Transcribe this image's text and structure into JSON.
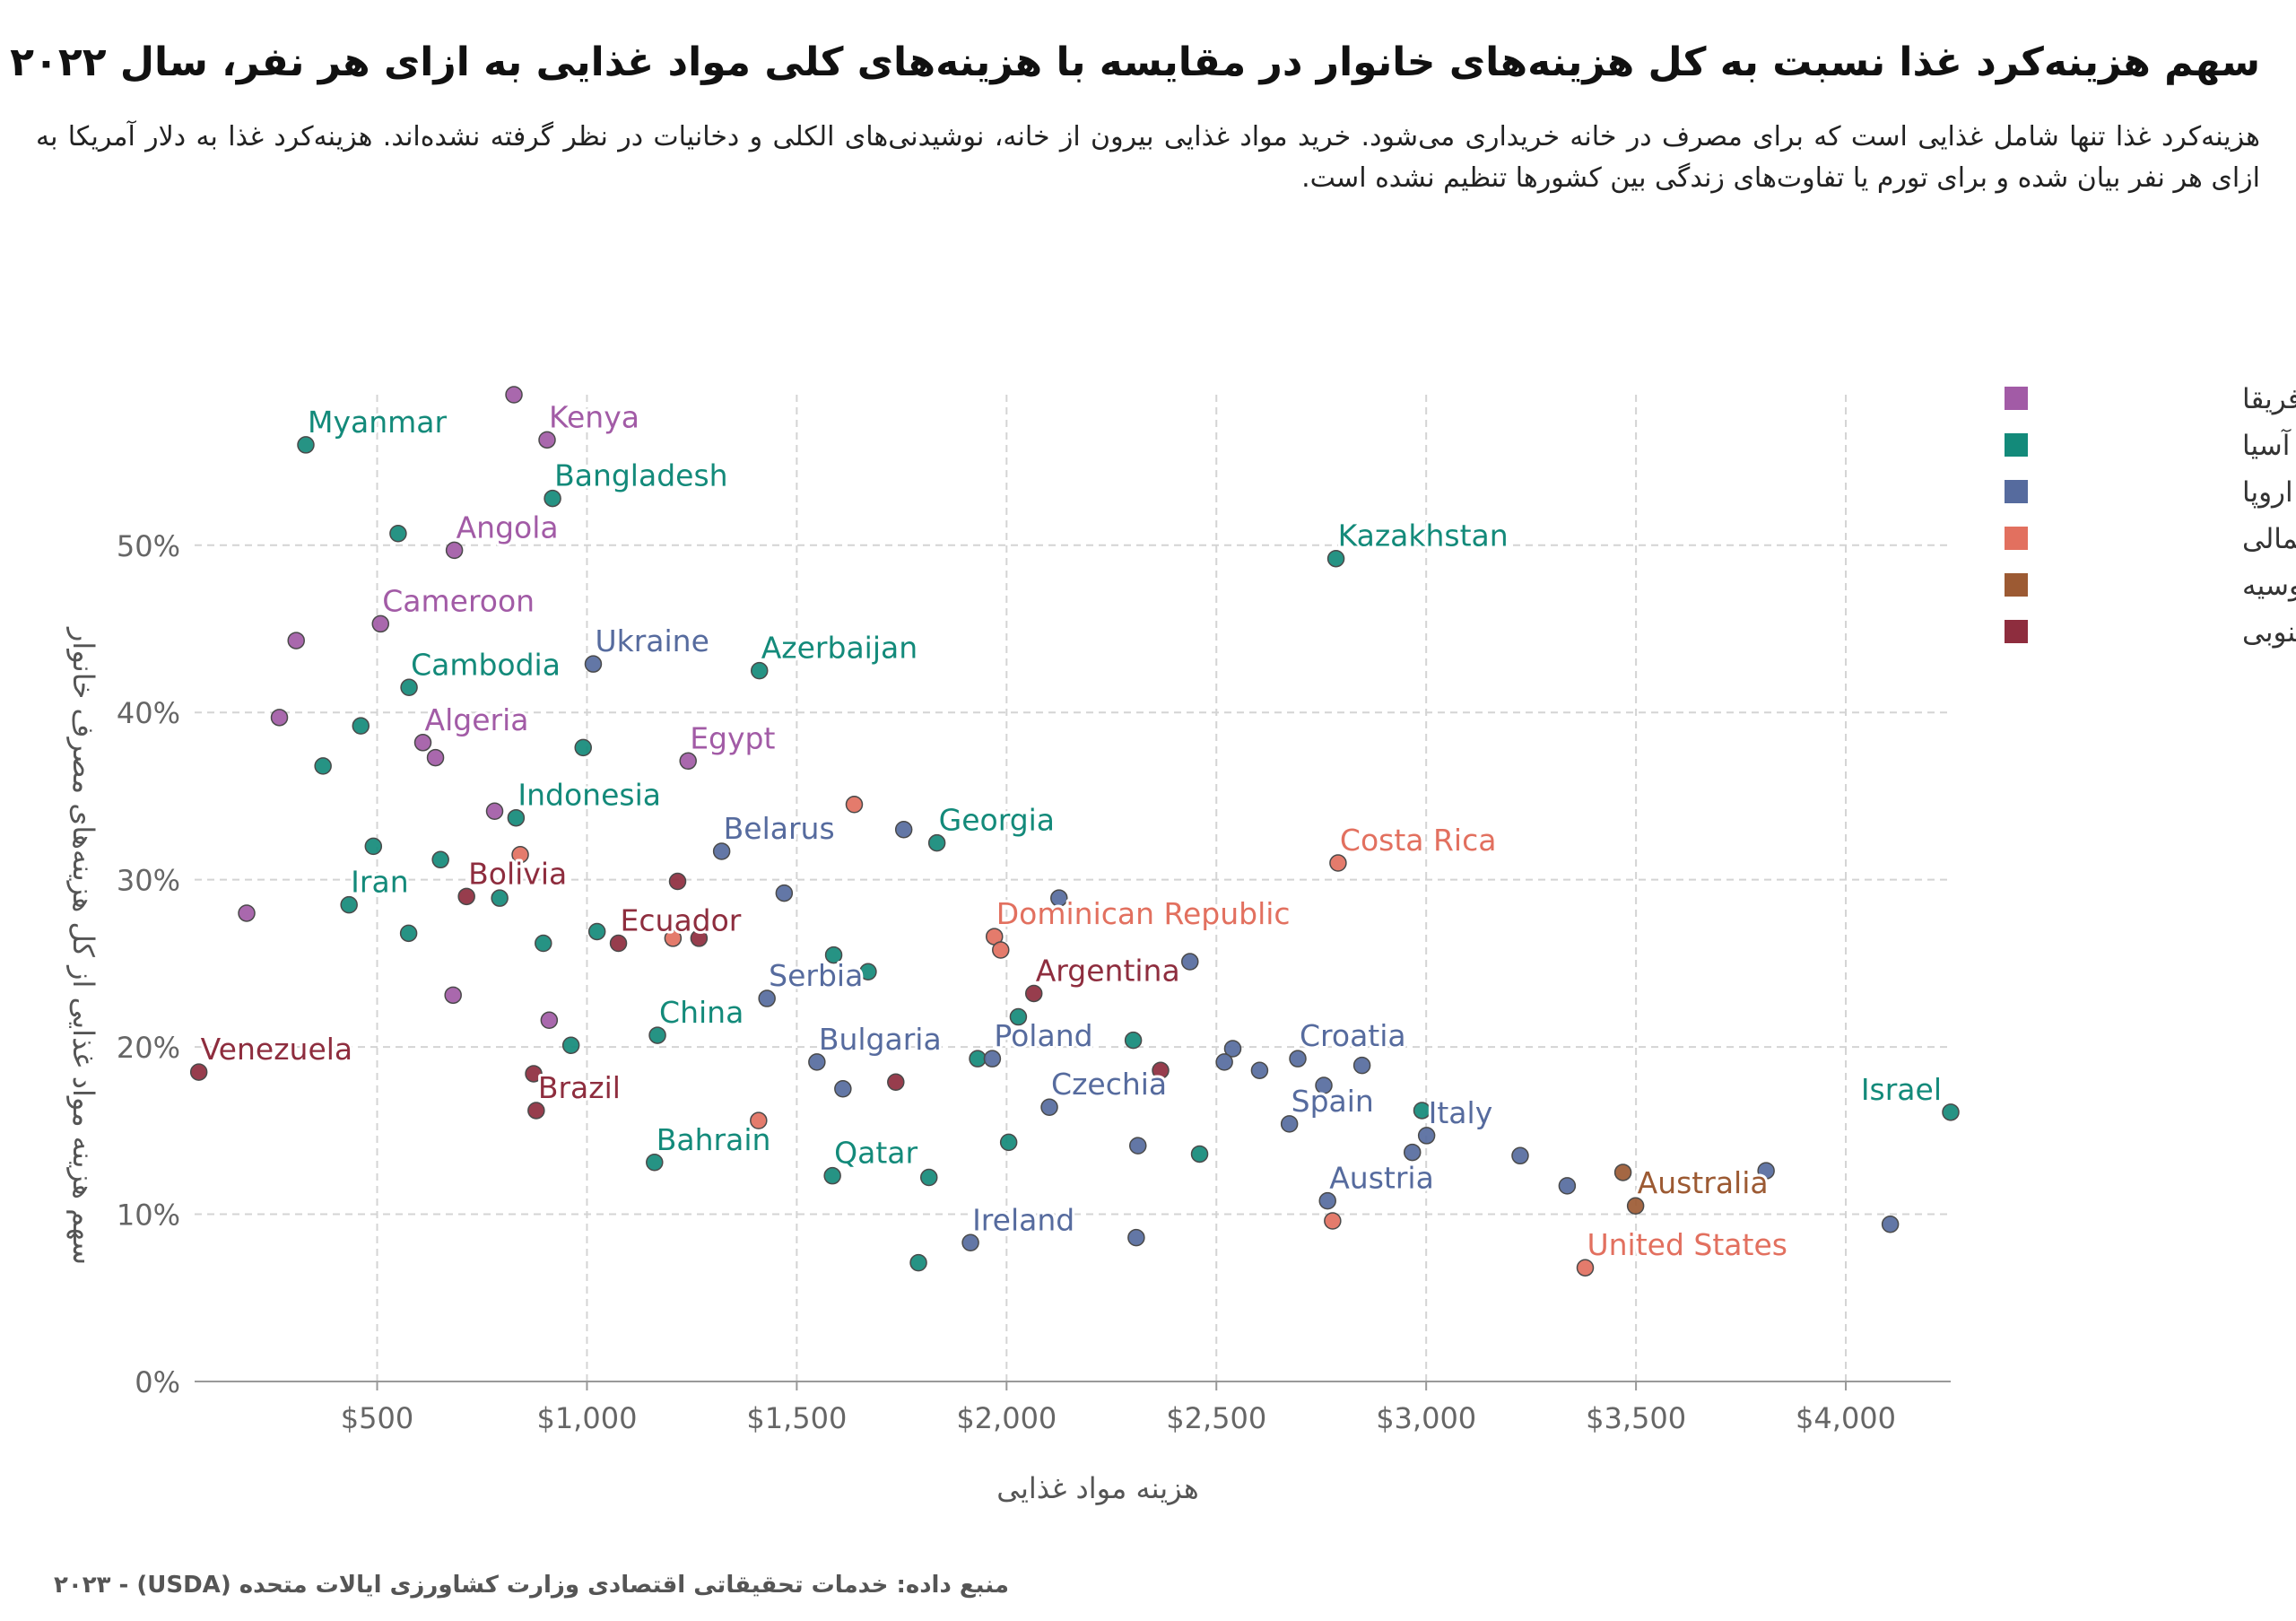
{
  "title": "سهم هزینه‌کرد غذا نسبت به کل هزینه‌های خانوار در مقایسه با هزینه‌های کلی مواد غذایی به ازای هر نفر، سال ۲۰۲۲",
  "subtitle": "هزینه‌کرد غذا تنها شامل غذایی است که برای مصرف در خانه خریداری می‌شود. خرید مواد غذایی بیرون از خانه، نوشیدنی‌های الکلی و دخانیات در نظر گرفته نشده‌اند. هزینه‌کرد غذا به دلار آمریکا به ازای هر نفر بیان شده و برای تورم یا تفاوت‌های زندگی بین کشورها تنظیم نشده است.",
  "source": "منبع داده: خدمات تحقیقاتی اقتصادی وزارت کشاورزی ایالات متحده (USDA) - ۲۰۲۳",
  "chart_data": {
    "type": "scatter",
    "xlabel": "هزینه مواد غذایی",
    "ylabel": "سهم هزینه مواد غذایی از کل هزینه‌های مصرف خانوار",
    "xlim": [
      65,
      4250
    ],
    "ylim": [
      0,
      59
    ],
    "xticks": [
      500,
      1000,
      1500,
      2000,
      2500,
      3000,
      3500,
      4000
    ],
    "xtick_labels": [
      "$500",
      "$1,000",
      "$1,500",
      "$2,000",
      "$2,500",
      "$3,000",
      "$3,500",
      "$4,000"
    ],
    "yticks": [
      0,
      10,
      20,
      30,
      40,
      50
    ],
    "ytick_labels": [
      "0%",
      "10%",
      "20%",
      "30%",
      "40%",
      "50%"
    ],
    "grid": true,
    "legend_position": "top-right",
    "regions": [
      {
        "name": "آفریقا",
        "color": "#A25BA6"
      },
      {
        "name": "آسیا",
        "color": "#138A7A"
      },
      {
        "name": "اروپا",
        "color": "#566B9E"
      },
      {
        "name": "آمریکای شمالی",
        "color": "#E2705F"
      },
      {
        "name": "اقیانوسیه",
        "color": "#9C5A33"
      },
      {
        "name": "آمریکای جنوبی",
        "color": "#8E2D3E"
      }
    ],
    "points": [
      {
        "x": 330,
        "y": 56,
        "r": 1,
        "label": "Myanmar"
      },
      {
        "x": 826,
        "y": 59,
        "r": 0
      },
      {
        "x": 905,
        "y": 56.3,
        "r": 0,
        "label": "Kenya"
      },
      {
        "x": 918,
        "y": 52.8,
        "r": 1,
        "label": "Bangladesh"
      },
      {
        "x": 550,
        "y": 50.7,
        "r": 1
      },
      {
        "x": 684,
        "y": 49.7,
        "r": 0,
        "label": "Angola"
      },
      {
        "x": 2785,
        "y": 49.2,
        "r": 1,
        "label": "Kazakhstan"
      },
      {
        "x": 508,
        "y": 45.3,
        "r": 0,
        "label": "Cameroon"
      },
      {
        "x": 307,
        "y": 44.3,
        "r": 0
      },
      {
        "x": 1015,
        "y": 42.9,
        "r": 2,
        "label": "Ukraine"
      },
      {
        "x": 1411,
        "y": 42.5,
        "r": 1,
        "label": "Azerbaijan"
      },
      {
        "x": 576,
        "y": 41.5,
        "r": 1,
        "label": "Cambodia"
      },
      {
        "x": 267,
        "y": 39.7,
        "r": 0
      },
      {
        "x": 461,
        "y": 39.2,
        "r": 1
      },
      {
        "x": 609,
        "y": 38.2,
        "r": 0,
        "label": "Algeria"
      },
      {
        "x": 639,
        "y": 37.3,
        "r": 0
      },
      {
        "x": 991,
        "y": 37.9,
        "r": 1
      },
      {
        "x": 1241,
        "y": 37.1,
        "r": 0,
        "label": "Egypt"
      },
      {
        "x": 371,
        "y": 36.8,
        "r": 1
      },
      {
        "x": 1637,
        "y": 34.5,
        "r": 3
      },
      {
        "x": 780,
        "y": 34.1,
        "r": 0
      },
      {
        "x": 831,
        "y": 33.7,
        "r": 1,
        "label": "Indonesia"
      },
      {
        "x": 1755,
        "y": 33.0,
        "r": 2
      },
      {
        "x": 1834,
        "y": 32.2,
        "r": 1,
        "label": "Georgia"
      },
      {
        "x": 491,
        "y": 32.0,
        "r": 1
      },
      {
        "x": 1321,
        "y": 31.7,
        "r": 2,
        "label": "Belarus"
      },
      {
        "x": 651,
        "y": 31.2,
        "r": 1
      },
      {
        "x": 841,
        "y": 31.5,
        "r": 3
      },
      {
        "x": 2790,
        "y": 31.0,
        "r": 3,
        "label": "Costa Rica"
      },
      {
        "x": 1216,
        "y": 29.9,
        "r": 5
      },
      {
        "x": 713,
        "y": 29.0,
        "r": 5,
        "label": "Bolivia"
      },
      {
        "x": 792,
        "y": 28.9,
        "r": 1
      },
      {
        "x": 1470,
        "y": 29.2,
        "r": 2
      },
      {
        "x": 2125,
        "y": 28.9,
        "r": 2
      },
      {
        "x": 189,
        "y": 28.0,
        "r": 0
      },
      {
        "x": 433,
        "y": 28.5,
        "r": 1,
        "label": "Iran"
      },
      {
        "x": 575,
        "y": 26.8,
        "r": 1
      },
      {
        "x": 1024,
        "y": 26.9,
        "r": 1
      },
      {
        "x": 1075,
        "y": 26.2,
        "r": 5,
        "label": "Ecuador"
      },
      {
        "x": 1205,
        "y": 26.5,
        "r": 3
      },
      {
        "x": 1267,
        "y": 26.5,
        "r": 5
      },
      {
        "x": 896,
        "y": 26.2,
        "r": 1
      },
      {
        "x": 1971,
        "y": 26.6,
        "r": 3,
        "label": "Dominican Republic"
      },
      {
        "x": 1986,
        "y": 25.8,
        "r": 3
      },
      {
        "x": 1588,
        "y": 25.5,
        "r": 1
      },
      {
        "x": 1670,
        "y": 24.5,
        "r": 1
      },
      {
        "x": 2437,
        "y": 25.1,
        "r": 2
      },
      {
        "x": 2065,
        "y": 23.2,
        "r": 5,
        "label": "Argentina"
      },
      {
        "x": 1429,
        "y": 22.9,
        "r": 2,
        "label": "Serbia"
      },
      {
        "x": 681,
        "y": 23.1,
        "r": 0
      },
      {
        "x": 910,
        "y": 21.6,
        "r": 0
      },
      {
        "x": 1168,
        "y": 20.7,
        "r": 1,
        "label": "China"
      },
      {
        "x": 962,
        "y": 20.1,
        "r": 1
      },
      {
        "x": 2028,
        "y": 21.8,
        "r": 1
      },
      {
        "x": 2302,
        "y": 20.4,
        "r": 1
      },
      {
        "x": 2539,
        "y": 19.9,
        "r": 2
      },
      {
        "x": 1931,
        "y": 19.3,
        "r": 1
      },
      {
        "x": 1966,
        "y": 19.3,
        "r": 2,
        "label": "Poland"
      },
      {
        "x": 1548,
        "y": 19.1,
        "r": 2,
        "label": "Bulgaria"
      },
      {
        "x": 2519,
        "y": 19.1,
        "r": 2
      },
      {
        "x": 2603,
        "y": 18.6,
        "r": 2
      },
      {
        "x": 2694,
        "y": 19.3,
        "r": 2,
        "label": "Croatia"
      },
      {
        "x": 2847,
        "y": 18.9,
        "r": 2
      },
      {
        "x": 873,
        "y": 18.4,
        "r": 5
      },
      {
        "x": 2367,
        "y": 18.6,
        "r": 5
      },
      {
        "x": 75,
        "y": 18.5,
        "r": 5,
        "label": "Venezuela"
      },
      {
        "x": 1736,
        "y": 17.9,
        "r": 5
      },
      {
        "x": 1610,
        "y": 17.5,
        "r": 2
      },
      {
        "x": 2756,
        "y": 17.7,
        "r": 2
      },
      {
        "x": 879,
        "y": 16.2,
        "r": 5,
        "label": "Brazil"
      },
      {
        "x": 2102,
        "y": 16.4,
        "r": 2,
        "label": "Czechia"
      },
      {
        "x": 2990,
        "y": 16.2,
        "r": 1
      },
      {
        "x": 4250,
        "y": 16.1,
        "r": 1,
        "label": "Israel"
      },
      {
        "x": 1409,
        "y": 15.6,
        "r": 3
      },
      {
        "x": 2674,
        "y": 15.4,
        "r": 2,
        "label": "Spain"
      },
      {
        "x": 3001,
        "y": 14.7,
        "r": 2,
        "label": "Italy"
      },
      {
        "x": 2005,
        "y": 14.3,
        "r": 1
      },
      {
        "x": 2313,
        "y": 14.1,
        "r": 2
      },
      {
        "x": 2460,
        "y": 13.6,
        "r": 1
      },
      {
        "x": 2967,
        "y": 13.7,
        "r": 2
      },
      {
        "x": 3224,
        "y": 13.5,
        "r": 2
      },
      {
        "x": 1161,
        "y": 13.1,
        "r": 1,
        "label": "Bahrain"
      },
      {
        "x": 3469,
        "y": 12.5,
        "r": 4
      },
      {
        "x": 1585,
        "y": 12.3,
        "r": 1,
        "label": "Qatar"
      },
      {
        "x": 1815,
        "y": 12.2,
        "r": 1
      },
      {
        "x": 3810,
        "y": 12.6,
        "r": 2
      },
      {
        "x": 3336,
        "y": 11.7,
        "r": 2
      },
      {
        "x": 2765,
        "y": 10.8,
        "r": 2,
        "label": "Austria"
      },
      {
        "x": 3499,
        "y": 10.5,
        "r": 4,
        "label": "Australia"
      },
      {
        "x": 2777,
        "y": 9.6,
        "r": 3
      },
      {
        "x": 4106,
        "y": 9.4,
        "r": 2
      },
      {
        "x": 1914,
        "y": 8.3,
        "r": 2,
        "label": "Ireland"
      },
      {
        "x": 2309,
        "y": 8.6,
        "r": 2
      },
      {
        "x": 1790,
        "y": 7.1,
        "r": 1
      },
      {
        "x": 3379,
        "y": 6.8,
        "r": 3,
        "label": "United States"
      }
    ]
  }
}
